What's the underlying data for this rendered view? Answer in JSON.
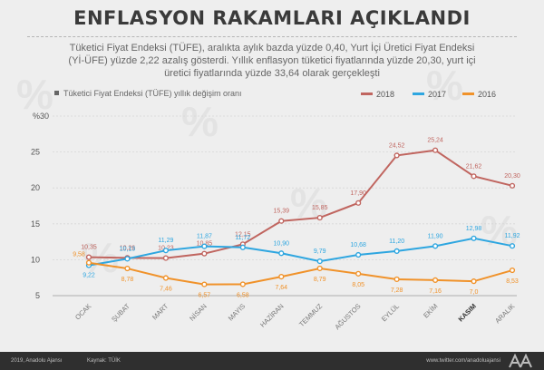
{
  "header": {
    "title": "ENFLASYON RAKAMLARI AÇIKLANDI",
    "desc_line1": "Tüketici Fiyat Endeksi (TÜFE), aralıkta aylık bazda yüzde 0,40, Yurt İçi Üretici Fiyat Endeksi",
    "desc_line2": "(Yİ-ÜFE) yüzde 2,22 azalış gösterdi. Yıllık enflasyon tüketici fiyatlarında yüzde 20,30, yurt içi",
    "desc_line3": "üretici fiyatlarında yüzde 33,64 olarak gerçekleşti"
  },
  "footer": {
    "copyright": "2019, Anadolu Ajansı",
    "source": "Kaynak: TÜİK",
    "twitter": "www.twitter.com/anadoluajansi",
    "logo_text": "AA"
  },
  "chart_data": {
    "type": "line",
    "subtitle": "Tüketici Fiyat Endeksi (TÜFE) yıllık değişim oranı",
    "y_axis_unit_label": "%30",
    "categories": [
      "OCAK",
      "ŞUBAT",
      "MART",
      "NİSAN",
      "MAYIS",
      "HAZİRAN",
      "TEMMUZ",
      "AĞUSTOS",
      "EYLÜL",
      "EKİM",
      "KASIM",
      "ARALIK"
    ],
    "highlighted_category": "KASIM",
    "ylim": [
      5,
      30
    ],
    "yticks": [
      5,
      10,
      15,
      20,
      25
    ],
    "grid": true,
    "legend_position": "top-right",
    "series": [
      {
        "name": "2018",
        "color": "#c0655f",
        "values": [
          10.35,
          10.26,
          10.23,
          10.85,
          12.15,
          15.39,
          15.85,
          17.9,
          24.52,
          25.24,
          21.62,
          20.3
        ],
        "labels": [
          "10,35",
          "10,26",
          "10,23",
          "10,85",
          "12,15",
          "15,39",
          "15,85",
          "17,90",
          "24,52",
          "25,24",
          "21,62",
          "20,30"
        ]
      },
      {
        "name": "2017",
        "color": "#2ea6e0",
        "values": [
          9.22,
          10.13,
          11.29,
          11.87,
          11.72,
          10.9,
          9.79,
          10.68,
          11.2,
          11.9,
          12.98,
          11.92
        ],
        "labels": [
          "9,22",
          "10,13",
          "11,29",
          "11,87",
          "11,72",
          "10,90",
          "9,79",
          "10,68",
          "11,20",
          "11,90",
          "12,98",
          "11,92"
        ]
      },
      {
        "name": "2016",
        "color": "#f0922a",
        "values": [
          9.58,
          8.78,
          7.46,
          6.57,
          6.58,
          7.64,
          8.79,
          8.05,
          7.28,
          7.16,
          7.0,
          8.53
        ],
        "labels": [
          "9,58",
          "8,78",
          "7,46",
          "6,57",
          "6,58",
          "7,64",
          "8,79",
          "8,05",
          "7,28",
          "7,16",
          "7,0",
          "8,53"
        ]
      }
    ]
  }
}
